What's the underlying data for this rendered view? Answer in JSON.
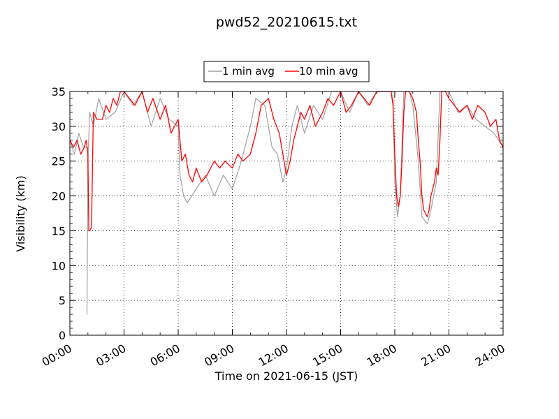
{
  "chart_data": {
    "type": "line",
    "title": "pwd52_20210615.txt",
    "xlabel": "Time on 2021-06-15 (JST)",
    "ylabel": "Visibility (km)",
    "x_unit": "hours",
    "xlim": [
      0,
      24
    ],
    "ylim": [
      0,
      35
    ],
    "x_ticks": [
      {
        "value": 0,
        "label": "00:00"
      },
      {
        "value": 3,
        "label": "03:00"
      },
      {
        "value": 6,
        "label": "06:00"
      },
      {
        "value": 9,
        "label": "09:00"
      },
      {
        "value": 12,
        "label": "12:00"
      },
      {
        "value": 15,
        "label": "15:00"
      },
      {
        "value": 18,
        "label": "18:00"
      },
      {
        "value": 21,
        "label": "21:00"
      },
      {
        "value": 24,
        "label": "24:00"
      }
    ],
    "y_ticks": [
      {
        "value": 0,
        "label": "0"
      },
      {
        "value": 5,
        "label": "5"
      },
      {
        "value": 10,
        "label": "10"
      },
      {
        "value": 15,
        "label": "15"
      },
      {
        "value": 20,
        "label": "20"
      },
      {
        "value": 25,
        "label": "25"
      },
      {
        "value": 30,
        "label": "30"
      },
      {
        "value": 35,
        "label": "35"
      }
    ],
    "grid": true,
    "legend_position": "top-center",
    "series": [
      {
        "name": "1 min avg",
        "color": "#a0a0a0",
        "x": [
          0.0,
          0.25,
          0.5,
          0.75,
          1.0,
          0.95,
          1.0,
          1.1,
          1.3,
          1.6,
          2.0,
          2.5,
          3.0,
          3.5,
          4.0,
          4.5,
          5.0,
          5.5,
          6.0,
          6.1,
          6.3,
          6.5,
          7.0,
          7.5,
          8.0,
          8.5,
          9.0,
          9.5,
          10.0,
          10.3,
          10.8,
          11.2,
          11.5,
          11.8,
          12.0,
          12.3,
          12.6,
          13.0,
          13.5,
          14.0,
          14.5,
          15.0,
          15.5,
          16.0,
          16.5,
          17.0,
          17.5,
          17.9,
          18.0,
          18.15,
          18.3,
          18.5,
          18.8,
          19.0,
          19.3,
          19.5,
          19.8,
          20.0,
          20.3,
          20.5,
          20.8,
          21.0,
          21.5,
          22.0,
          22.5,
          23.0,
          23.5,
          24.0
        ],
        "y": [
          28,
          26,
          29,
          27,
          27,
          3,
          25,
          32,
          30,
          34,
          31,
          32,
          35,
          33,
          35,
          30,
          34,
          31,
          30,
          23,
          20,
          19,
          21,
          23,
          20,
          23,
          21,
          25,
          30,
          34,
          33,
          27,
          26,
          22,
          24,
          30,
          33,
          29,
          33,
          31,
          35,
          35,
          32,
          35,
          33,
          35,
          35,
          35,
          22,
          17,
          20,
          35,
          35,
          33,
          25,
          17,
          16,
          18,
          22,
          35,
          35,
          35,
          32,
          33,
          31,
          30,
          29,
          27
        ]
      },
      {
        "name": "10 min avg",
        "color": "#ff0000",
        "x": [
          0.0,
          0.2,
          0.4,
          0.6,
          0.8,
          0.9,
          1.0,
          1.05,
          1.1,
          1.2,
          1.3,
          1.5,
          1.8,
          2.0,
          2.2,
          2.4,
          2.6,
          2.8,
          3.0,
          3.3,
          3.6,
          4.0,
          4.3,
          4.6,
          5.0,
          5.3,
          5.6,
          5.8,
          6.0,
          6.1,
          6.2,
          6.4,
          6.6,
          6.8,
          7.0,
          7.3,
          7.6,
          8.0,
          8.3,
          8.6,
          9.0,
          9.3,
          9.6,
          10.0,
          10.3,
          10.6,
          11.0,
          11.3,
          11.6,
          11.8,
          12.0,
          12.2,
          12.4,
          12.6,
          12.8,
          13.0,
          13.3,
          13.6,
          14.0,
          14.3,
          14.6,
          15.0,
          15.3,
          15.6,
          16.0,
          16.3,
          16.6,
          17.0,
          17.4,
          17.8,
          17.9,
          18.0,
          18.1,
          18.2,
          18.3,
          18.4,
          18.5,
          18.6,
          18.7,
          18.8,
          19.0,
          19.2,
          19.3,
          19.4,
          19.5,
          19.6,
          19.7,
          19.8,
          19.9,
          20.0,
          20.1,
          20.2,
          20.3,
          20.4,
          20.5,
          20.6,
          20.7,
          20.8,
          21.0,
          21.3,
          21.6,
          22.0,
          22.3,
          22.6,
          23.0,
          23.3,
          23.6,
          23.8,
          24.0
        ],
        "y": [
          28,
          27,
          28,
          26,
          27,
          28,
          26,
          15,
          15,
          15.5,
          32,
          31,
          31,
          33,
          32,
          34,
          33,
          35,
          35,
          34,
          33,
          35,
          32,
          34,
          31,
          33,
          29,
          30,
          31,
          28,
          25,
          26,
          23,
          22,
          24,
          22,
          23,
          25,
          24,
          25,
          24,
          26,
          25,
          26,
          29,
          33,
          34,
          31,
          29,
          26,
          23,
          25,
          28,
          30,
          32,
          31,
          33,
          30,
          32,
          34,
          33,
          35,
          32,
          33,
          35,
          34,
          33,
          35,
          35,
          35,
          33,
          26,
          20,
          18.5,
          20,
          25,
          32,
          35,
          35,
          35,
          34,
          32,
          28,
          25,
          20,
          18,
          17.5,
          17,
          18,
          20,
          21,
          22,
          24,
          23,
          28,
          35,
          35,
          35,
          34,
          33,
          32,
          33,
          31,
          33,
          32,
          30,
          31,
          28,
          27
        ]
      }
    ]
  },
  "colors": {
    "background": "#ffffff",
    "grid": "#000000"
  }
}
